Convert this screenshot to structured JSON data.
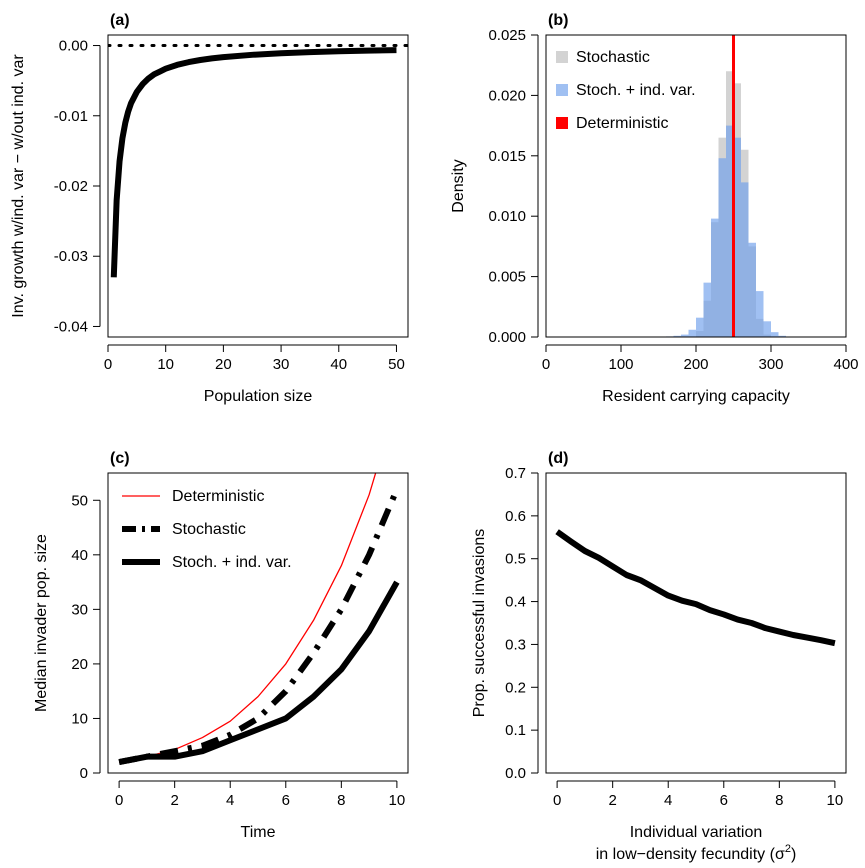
{
  "chart_data": [
    {
      "panel": "(a)",
      "type": "line",
      "xlabel": "Population size",
      "ylabel": "Inv. growth w/ind. var − w/out ind. var",
      "xlim": [
        0,
        52
      ],
      "ylim": [
        -0.0415,
        0.0015
      ],
      "xticks": [
        0,
        10,
        20,
        30,
        40,
        50
      ],
      "yticks": [
        0.0,
        -0.01,
        -0.02,
        -0.03,
        -0.04
      ],
      "ytick_labels": [
        "0.00",
        "-0.01",
        "-0.02",
        "-0.03",
        "-0.04"
      ],
      "series": [
        {
          "style": "solid-thick",
          "color": "#000000",
          "x": [
            1,
            1.5,
            2,
            2.5,
            3,
            3.5,
            4,
            5,
            6,
            7,
            8,
            9,
            10,
            12,
            14,
            16,
            18,
            20,
            25,
            30,
            35,
            40,
            45,
            50
          ],
          "y": [
            -0.033,
            -0.022,
            -0.0165,
            -0.0132,
            -0.011,
            -0.0094,
            -0.0082,
            -0.0066,
            -0.0055,
            -0.0047,
            -0.0041,
            -0.0037,
            -0.0033,
            -0.00275,
            -0.00236,
            -0.00206,
            -0.00183,
            -0.00165,
            -0.00132,
            -0.0011,
            -0.00094,
            -0.00082,
            -0.00073,
            -0.00066
          ]
        },
        {
          "style": "dotted",
          "color": "#000000",
          "x": [
            0,
            52
          ],
          "y": [
            0,
            0
          ]
        }
      ]
    },
    {
      "panel": "(b)",
      "type": "bar",
      "xlabel": "Resident carrying capacity",
      "ylabel": "Density",
      "xlim": [
        0,
        400
      ],
      "ylim": [
        0,
        0.025
      ],
      "xticks": [
        0,
        100,
        200,
        300,
        400
      ],
      "yticks": [
        0.0,
        0.005,
        0.01,
        0.015,
        0.02,
        0.025
      ],
      "ytick_labels": [
        "0.000",
        "0.005",
        "0.010",
        "0.015",
        "0.020",
        "0.025"
      ],
      "bin_width": 10,
      "legend": [
        "Stochastic",
        "Stoch. + ind. var.",
        "Deterministic"
      ],
      "series": [
        {
          "name": "Stochastic",
          "color": "#d3d3d3",
          "bin_starts": [
            200,
            210,
            220,
            230,
            240,
            250,
            260,
            270,
            280,
            290
          ],
          "values": [
            0.0005,
            0.003,
            0.0095,
            0.0165,
            0.022,
            0.021,
            0.0155,
            0.0075,
            0.0015,
            0.0002
          ]
        },
        {
          "name": "Stoch. + ind. var.",
          "color": "#6d9eeb",
          "opacity": 0.65,
          "bin_starts": [
            160,
            170,
            180,
            190,
            200,
            210,
            220,
            230,
            240,
            250,
            260,
            270,
            280,
            290,
            300,
            310
          ],
          "values": [
            5e-05,
            0.0001,
            0.0002,
            0.0006,
            0.0016,
            0.0045,
            0.0098,
            0.0148,
            0.0175,
            0.0165,
            0.0128,
            0.0078,
            0.0038,
            0.0013,
            0.0004,
            0.0001
          ]
        },
        {
          "name": "Deterministic",
          "color": "#ff0000",
          "vline_x": 250
        }
      ]
    },
    {
      "panel": "(c)",
      "type": "line",
      "xlabel": "Time",
      "ylabel": "Median invader pop. size",
      "xlim": [
        -0.4,
        10.4
      ],
      "ylim": [
        0,
        55
      ],
      "xticks": [
        0,
        2,
        4,
        6,
        8,
        10
      ],
      "yticks": [
        0,
        10,
        20,
        30,
        40,
        50
      ],
      "legend": [
        "Deterministic",
        "Stochastic",
        "Stoch. + ind. var."
      ],
      "series": [
        {
          "name": "Deterministic",
          "style": "thin",
          "color": "#ff0000",
          "x": [
            0,
            1,
            2,
            3,
            4,
            5,
            6,
            7,
            8,
            9,
            10
          ],
          "y": [
            2,
            3,
            4.3,
            6.5,
            9.5,
            14,
            20,
            28,
            38,
            51,
            68
          ]
        },
        {
          "name": "Stochastic",
          "style": "dashed-thick",
          "color": "#000000",
          "x": [
            0,
            1,
            2,
            3,
            4,
            5,
            6,
            7,
            8,
            9,
            10
          ],
          "y": [
            2,
            3,
            4,
            5,
            7,
            10,
            15,
            22,
            30,
            40,
            52
          ]
        },
        {
          "name": "Stoch. + ind. var.",
          "style": "solid-thick",
          "color": "#000000",
          "x": [
            0,
            1,
            2,
            3,
            4,
            5,
            6,
            7,
            8,
            9,
            10
          ],
          "y": [
            2,
            3,
            3,
            4,
            6,
            8,
            10,
            14,
            19,
            26,
            35
          ]
        }
      ]
    },
    {
      "panel": "(d)",
      "type": "line",
      "xlabel": "Individual variation",
      "xlabel_line2_prefix": "in low−density fecundity (σ",
      "xlabel_superscript": "2",
      "xlabel_line2_suffix": ")",
      "ylabel": "Prop. successful invasions",
      "xlim": [
        -0.4,
        10.4
      ],
      "ylim": [
        0,
        0.7
      ],
      "xticks": [
        0,
        2,
        4,
        6,
        8,
        10
      ],
      "yticks": [
        0.0,
        0.1,
        0.2,
        0.3,
        0.4,
        0.5,
        0.6,
        0.7
      ],
      "ytick_labels": [
        "0.0",
        "0.1",
        "0.2",
        "0.3",
        "0.4",
        "0.5",
        "0.6",
        "0.7"
      ],
      "series": [
        {
          "style": "solid-thick",
          "color": "#000000",
          "x": [
            0,
            0.5,
            1,
            1.5,
            2,
            2.5,
            3,
            3.5,
            4,
            4.5,
            5,
            5.5,
            6,
            6.5,
            7,
            7.5,
            8,
            8.5,
            9,
            9.5,
            10
          ],
          "y": [
            0.563,
            0.54,
            0.518,
            0.502,
            0.482,
            0.462,
            0.45,
            0.432,
            0.414,
            0.402,
            0.394,
            0.38,
            0.37,
            0.358,
            0.35,
            0.338,
            0.33,
            0.322,
            0.316,
            0.31,
            0.303
          ]
        }
      ]
    }
  ]
}
